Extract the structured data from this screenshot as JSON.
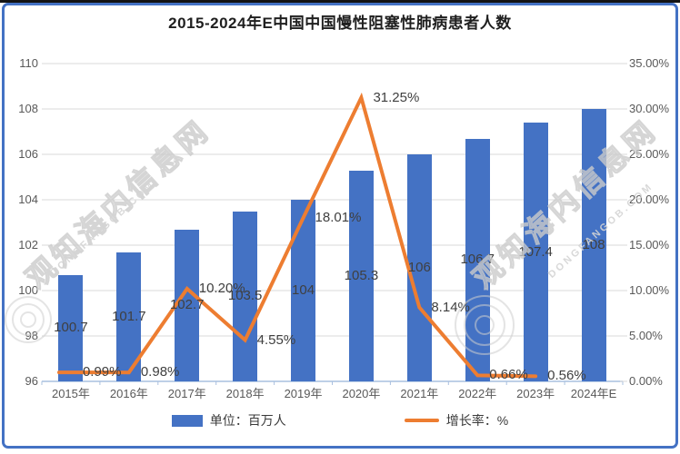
{
  "title": "2015-2024年E中国中国慢性阻塞性肺病患者人数",
  "legend": {
    "bar_label": "单位：百万人",
    "line_label": "增长率：%"
  },
  "watermark": {
    "text": "观知海内信息网",
    "subtext": "DONGFANGOB.COM"
  },
  "colors": {
    "bar": "#4472C4",
    "line": "#ED7D31",
    "frame": "#4472C4",
    "grid": "#D9D9D9",
    "baseline": "#A9C0DF",
    "label_text": "#3F3F3F",
    "axis_text": "#595959"
  },
  "chart_data": {
    "type": "bar+line combo",
    "title": "2015-2024年E中国中国慢性阻塞性肺病患者人数",
    "categories": [
      "2015年",
      "2016年",
      "2017年",
      "2018年",
      "2019年",
      "2020年",
      "2021年",
      "2022年",
      "2023年",
      "2024年E"
    ],
    "series": [
      {
        "name": "单位：百万人",
        "type": "bar",
        "axis": "left",
        "values": [
          100.7,
          101.7,
          102.7,
          103.5,
          104,
          105.3,
          106,
          106.7,
          107.4,
          108
        ],
        "labels": [
          "100.7",
          "101.7",
          "102.7",
          "103.5",
          "104",
          "105.3",
          "106",
          "106.7",
          "107.4",
          "108"
        ]
      },
      {
        "name": "增长率：%",
        "type": "line",
        "axis": "right",
        "values": [
          0.99,
          0.98,
          10.2,
          4.55,
          18.01,
          31.25,
          8.14,
          0.66,
          0.56,
          null
        ],
        "labels": [
          "0.99%",
          "0.98%",
          "10.20%",
          "4.55%",
          "18.01%",
          "31.25%",
          "8.14%",
          "0.66%",
          "0.56%",
          null
        ]
      }
    ],
    "left_axis": {
      "min": 96,
      "max": 110,
      "step": 2,
      "ticks": [
        "96",
        "98",
        "100",
        "102",
        "104",
        "106",
        "108",
        "110"
      ]
    },
    "right_axis": {
      "min": 0,
      "max": 35,
      "step": 5,
      "ticks": [
        "0.00%",
        "5.00%",
        "10.00%",
        "15.00%",
        "20.00%",
        "25.00%",
        "30.00%",
        "35.00%"
      ]
    },
    "grid": true,
    "legend_position": "bottom"
  }
}
